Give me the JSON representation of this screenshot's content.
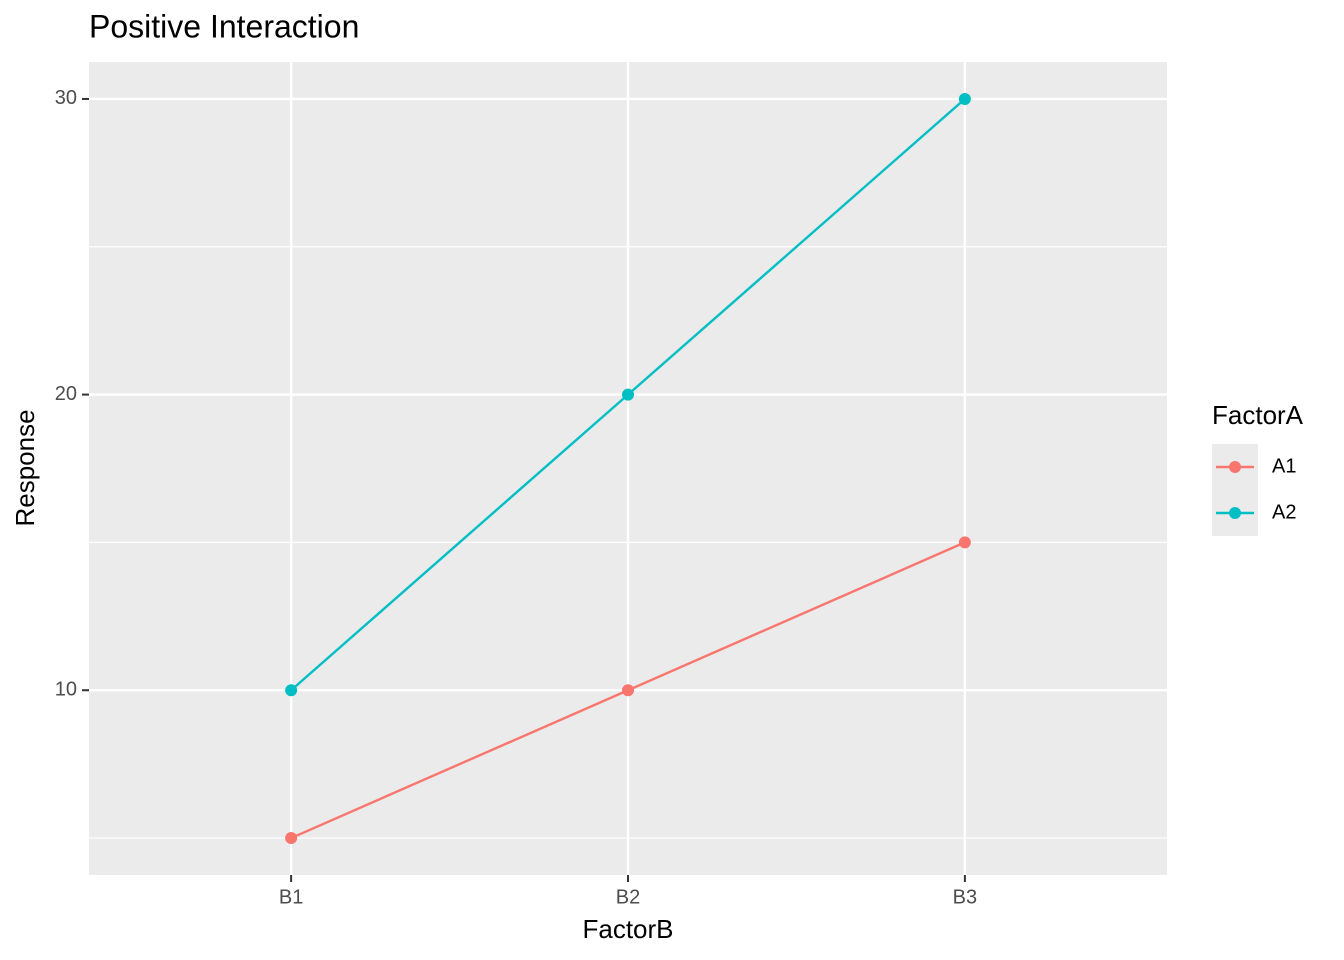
{
  "chart_data": {
    "type": "line",
    "title": "Positive Interaction",
    "x_label": "FactorB",
    "y_label": "Response",
    "categories": [
      "B1",
      "B2",
      "B3"
    ],
    "series": [
      {
        "name": "A1",
        "color": "#F8766D",
        "values": [
          5,
          10,
          15
        ]
      },
      {
        "name": "A2",
        "color": "#00BFC4",
        "values": [
          10,
          20,
          30
        ]
      }
    ],
    "ylim": [
      3.75,
      31.25
    ],
    "yticks": [
      10,
      20,
      30
    ],
    "y_minor_ticks": [
      5,
      15,
      25
    ],
    "grid": true,
    "legend_title": "FactorA",
    "legend": "right"
  }
}
